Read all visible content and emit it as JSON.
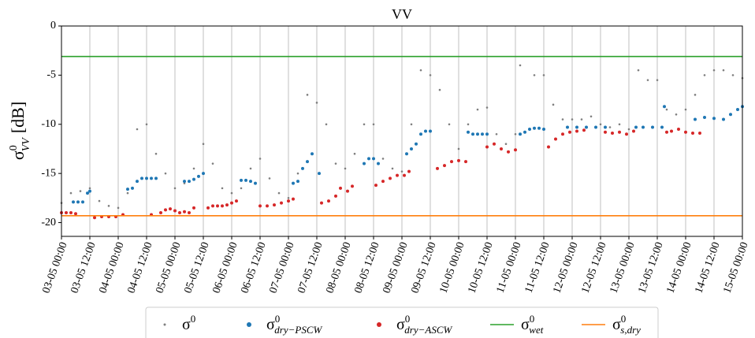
{
  "chart_data": {
    "type": "scatter",
    "title": "VV",
    "ylabel": {
      "base": "σ",
      "sup": "0",
      "sub": "VV",
      "unit": "[dB]"
    },
    "xlim": [
      0,
      288
    ],
    "ylim": [
      -21.4,
      0
    ],
    "yticks": [
      0,
      -5,
      -10,
      -15,
      -20
    ],
    "xticks": [
      {
        "value": 0,
        "label": "03-05 00:00"
      },
      {
        "value": 12,
        "label": "03-05 12:00"
      },
      {
        "value": 24,
        "label": "04-05 00:00"
      },
      {
        "value": 36,
        "label": "04-05 12:00"
      },
      {
        "value": 48,
        "label": "05-05 00:00"
      },
      {
        "value": 60,
        "label": "05-05 12:00"
      },
      {
        "value": 72,
        "label": "06-05 00:00"
      },
      {
        "value": 84,
        "label": "06-05 12:00"
      },
      {
        "value": 96,
        "label": "07-05 00:00"
      },
      {
        "value": 108,
        "label": "07-05 12:00"
      },
      {
        "value": 120,
        "label": "08-05 00:00"
      },
      {
        "value": 132,
        "label": "08-05 12:00"
      },
      {
        "value": 144,
        "label": "09-05 00:00"
      },
      {
        "value": 156,
        "label": "09-05 12:00"
      },
      {
        "value": 168,
        "label": "10-05 00:00"
      },
      {
        "value": 180,
        "label": "10-05 12:00"
      },
      {
        "value": 192,
        "label": "11-05 00:00"
      },
      {
        "value": 204,
        "label": "11-05 12:00"
      },
      {
        "value": 216,
        "label": "12-05 00:00"
      },
      {
        "value": 228,
        "label": "12-05 12:00"
      },
      {
        "value": 240,
        "label": "13-05 00:00"
      },
      {
        "value": 252,
        "label": "13-05 12:00"
      },
      {
        "value": 264,
        "label": "14-05 00:00"
      },
      {
        "value": 276,
        "label": "14-05 12:00"
      },
      {
        "value": 288,
        "label": "15-05 00:00"
      }
    ],
    "xgrid": true,
    "legend": "bottom",
    "series": [
      {
        "name": "σ",
        "name_sup": "0",
        "style": "scatter",
        "color": "#7f7f7f",
        "x": [
          0,
          4,
          8,
          12,
          16,
          20,
          24,
          28,
          32,
          36,
          40,
          44,
          48,
          52,
          56,
          60,
          64,
          68,
          72,
          76,
          80,
          84,
          88,
          92,
          96,
          100,
          104,
          108,
          112,
          116,
          120,
          124,
          128,
          132,
          136,
          140,
          144,
          148,
          152,
          156,
          160,
          164,
          168,
          172,
          176,
          180,
          184,
          188,
          192,
          194,
          200,
          204,
          208,
          212,
          216,
          220,
          224,
          228,
          232,
          236,
          240,
          244,
          248,
          252,
          256,
          260,
          264,
          268,
          272,
          276,
          280,
          284,
          288
        ],
        "values": [
          -18,
          -17,
          -16.8,
          -16.5,
          -17.8,
          -18.3,
          -18.5,
          -17,
          -10.5,
          -10,
          -13,
          -15,
          -16.5,
          -16,
          -14.5,
          -12,
          -14,
          -16.5,
          -17,
          -16.5,
          -14.5,
          -13.5,
          -15.5,
          -17,
          -17.5,
          -15,
          -7,
          -7.8,
          -10,
          -14,
          -14.5,
          -13,
          -10,
          -10,
          -13.5,
          -14.5,
          -14.8,
          -10,
          -4.5,
          -5,
          -6.5,
          -10,
          -12.5,
          -10,
          -8.5,
          -8.3,
          -11,
          -12,
          -11,
          -4,
          -5,
          -5,
          -8,
          -9.5,
          -9.5,
          -9.5,
          -9.2,
          -10,
          -10.3,
          -10,
          -10.5,
          -4.5,
          -5.5,
          -5.5,
          -8.5,
          -9,
          -8.5,
          -7,
          -5,
          -4.5,
          -4.5,
          -5,
          -5.3
        ]
      },
      {
        "name": "σ",
        "name_sup": "0",
        "name_sub": "dry−PSCW",
        "style": "scatter",
        "color": "#1f77b4",
        "x": [
          5,
          7,
          9,
          11,
          12,
          28,
          30,
          32,
          34,
          36,
          38,
          40,
          52,
          54,
          56,
          58,
          60,
          76,
          78,
          80,
          82,
          98,
          100,
          102,
          104,
          106,
          109,
          128,
          130,
          132,
          134,
          146,
          148,
          150,
          152,
          154,
          156,
          172,
          174,
          176,
          178,
          180,
          194,
          196,
          198,
          200,
          202,
          204,
          214,
          218,
          222,
          226,
          230,
          243,
          246,
          250,
          254,
          255,
          268,
          272,
          276,
          280,
          283,
          286,
          288
        ],
        "values": [
          -17.9,
          -17.9,
          -17.9,
          -17,
          -16.8,
          -16.6,
          -16.5,
          -15.8,
          -15.5,
          -15.5,
          -15.5,
          -15.5,
          -15.8,
          -15.8,
          -15.6,
          -15.3,
          -15,
          -15.7,
          -15.7,
          -15.8,
          -16,
          -16,
          -15.8,
          -14.5,
          -13.8,
          -13,
          -15,
          -14,
          -13.5,
          -13.5,
          -14,
          -13,
          -12.5,
          -12,
          -11,
          -10.7,
          -10.7,
          -10.8,
          -11,
          -11,
          -11,
          -11,
          -11,
          -10.8,
          -10.5,
          -10.4,
          -10.4,
          -10.5,
          -10.3,
          -10.3,
          -10.3,
          -10.3,
          -10.3,
          -10.3,
          -10.3,
          -10.3,
          -10.3,
          -8.2,
          -9.5,
          -9.3,
          -9.4,
          -9.5,
          -9,
          -8.5,
          -8.2
        ]
      },
      {
        "name": "σ",
        "name_sup": "0",
        "name_sub": "dry−ASCW",
        "style": "scatter",
        "color": "#d62728",
        "x": [
          0,
          2,
          4,
          6,
          14,
          17,
          20,
          23,
          26,
          38,
          42,
          44,
          46,
          48,
          50,
          52,
          54,
          56,
          62,
          64,
          66,
          68,
          70,
          72,
          74,
          84,
          87,
          90,
          93,
          96,
          98,
          110,
          113,
          116,
          118,
          121,
          123,
          133,
          136,
          139,
          142,
          145,
          147,
          159,
          162,
          165,
          168,
          171,
          180,
          183,
          186,
          189,
          192,
          206,
          209,
          212,
          215,
          218,
          221,
          230,
          233,
          236,
          239,
          242,
          256,
          258,
          261,
          264,
          267,
          270
        ],
        "values": [
          -19,
          -19,
          -19,
          -19.1,
          -19.5,
          -19.4,
          -19.4,
          -19.4,
          -19.2,
          -19.2,
          -19,
          -18.7,
          -18.6,
          -18.8,
          -19,
          -18.9,
          -19,
          -18.5,
          -18.5,
          -18.3,
          -18.3,
          -18.3,
          -18.2,
          -18,
          -17.8,
          -18.3,
          -18.3,
          -18.2,
          -18,
          -17.8,
          -17.6,
          -18,
          -17.8,
          -17.3,
          -16.5,
          -16.8,
          -16.3,
          -16.2,
          -15.8,
          -15.5,
          -15.2,
          -15.2,
          -14.8,
          -14.5,
          -14.2,
          -13.8,
          -13.7,
          -13.8,
          -12.3,
          -12,
          -12.5,
          -12.8,
          -12.6,
          -12.3,
          -11.5,
          -11,
          -10.8,
          -10.7,
          -10.6,
          -10.8,
          -10.9,
          -10.8,
          -11,
          -10.7,
          -10.8,
          -10.7,
          -10.5,
          -10.8,
          -10.9,
          -10.9
        ]
      },
      {
        "name": "σ",
        "name_sup": "0",
        "name_sub": "wet",
        "style": "line",
        "color": "#2ca02c",
        "x": [
          0,
          288
        ],
        "values": [
          -3.1,
          -3.1
        ]
      },
      {
        "name": "σ",
        "name_sup": "0",
        "name_sub": "s,dry",
        "style": "line",
        "color": "#ff7f0e",
        "x": [
          0,
          288
        ],
        "values": [
          -19.3,
          -19.3
        ]
      }
    ]
  }
}
